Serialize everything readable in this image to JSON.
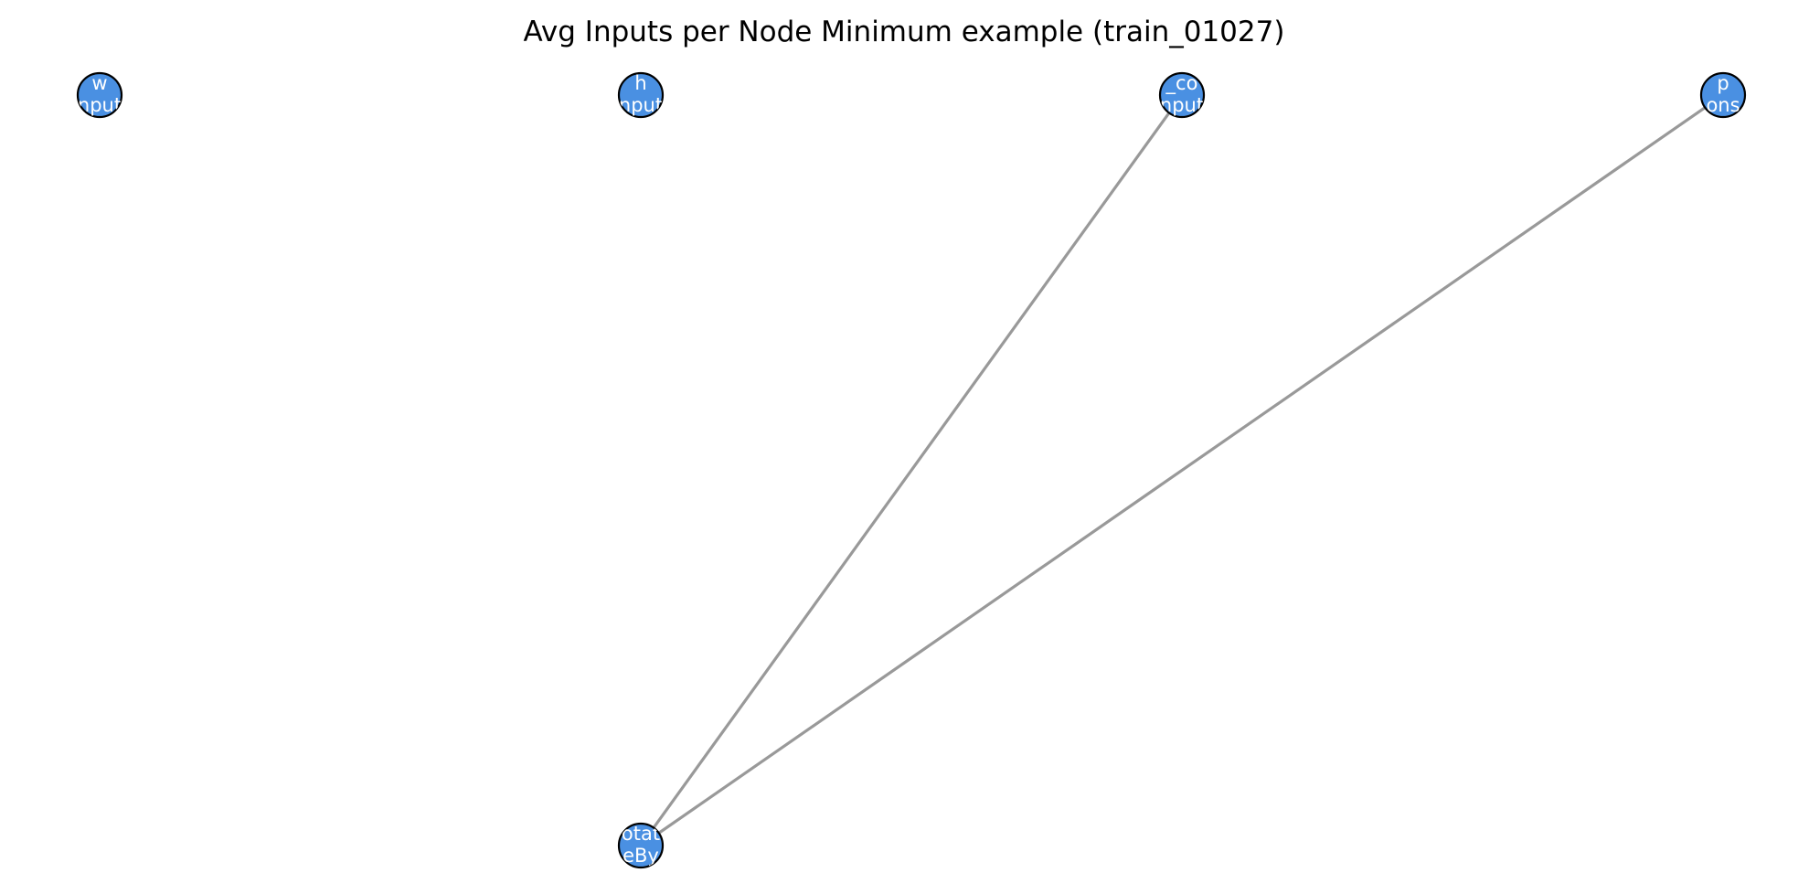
{
  "diagram": {
    "title": "Avg Inputs per Node Minimum example (train_01027)",
    "node_fill": "#4a90e2",
    "node_stroke": "#000000",
    "edge_color": "#999999",
    "nodes": [
      {
        "id": "w",
        "line1": "w",
        "line2": "nput"
      },
      {
        "id": "h",
        "line1": "h",
        "line2": "nput"
      },
      {
        "id": "x_co",
        "line1": "_co",
        "line2": "nput"
      },
      {
        "id": "p",
        "line1": "p",
        "line2": "ons"
      },
      {
        "id": "rotate",
        "line1": "otat",
        "line2": "eBy"
      }
    ],
    "edges": [
      {
        "from": "x_co",
        "to": "rotate"
      },
      {
        "from": "p",
        "to": "rotate"
      }
    ]
  }
}
